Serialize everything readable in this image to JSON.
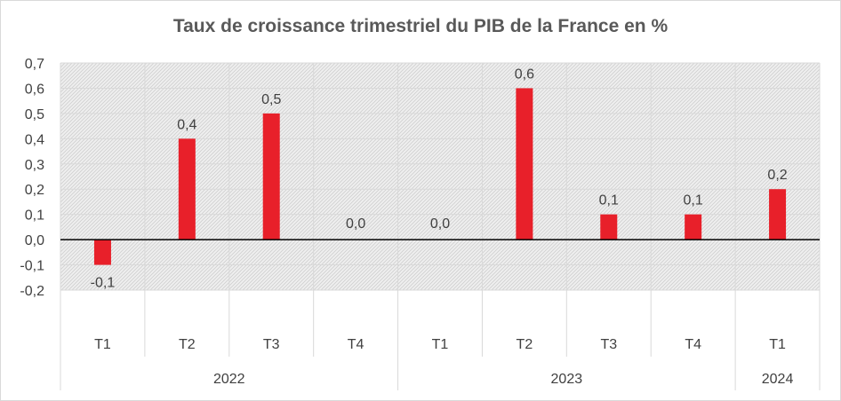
{
  "chart_data": {
    "type": "bar",
    "title": "Taux de croissance trimestriel du PIB de la France en %",
    "categories": [
      "T1",
      "T2",
      "T3",
      "T4",
      "T1",
      "T2",
      "T3",
      "T4",
      "T1"
    ],
    "groups": [
      {
        "label": "2022",
        "count": 4
      },
      {
        "label": "2023",
        "count": 4
      },
      {
        "label": "2024",
        "count": 1
      }
    ],
    "values": [
      -0.1,
      0.4,
      0.5,
      0.0,
      0.0,
      0.6,
      0.1,
      0.1,
      0.2
    ],
    "data_labels": [
      "-0,1",
      "0,4",
      "0,5",
      "0,0",
      "0,0",
      "0,6",
      "0,1",
      "0,1",
      "0,2"
    ],
    "ylim": [
      -0.2,
      0.7
    ],
    "yticks": [
      0.7,
      0.6,
      0.5,
      0.4,
      0.3,
      0.2,
      0.1,
      0.0,
      -0.1,
      -0.2
    ],
    "ytick_labels": [
      "0,7",
      "0,6",
      "0,5",
      "0,4",
      "0,3",
      "0,2",
      "0,1",
      "0,0",
      "-0,1",
      "-0,2"
    ],
    "bar_color": "#e8202a",
    "grid": true,
    "legend": "none"
  }
}
